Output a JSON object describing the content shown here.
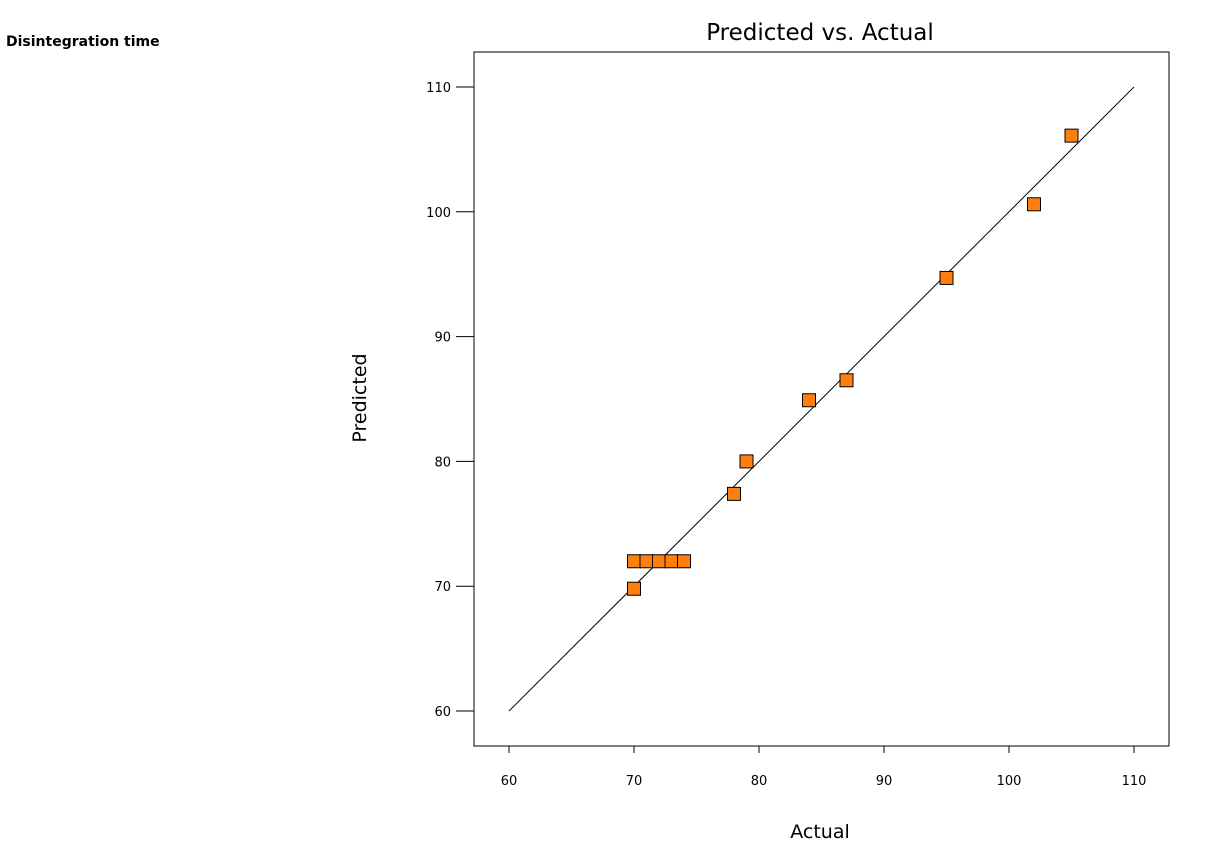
{
  "response_label": "Disintegration time",
  "chart_data": {
    "type": "scatter",
    "title": "Predicted vs. Actual",
    "xlabel": "Actual",
    "ylabel": "Predicted",
    "xlim": [
      57.2,
      112.8
    ],
    "ylim": [
      57.2,
      112.8
    ],
    "xticks": [
      60,
      70,
      80,
      90,
      100,
      110
    ],
    "yticks": [
      60,
      70,
      80,
      90,
      100,
      110
    ],
    "grid": false,
    "reference_line": {
      "from": [
        60,
        60
      ],
      "to": [
        110,
        110
      ]
    },
    "marker": {
      "shape": "square",
      "fill": "#ff7f0e",
      "stroke": "#000000"
    },
    "points": [
      {
        "x": 70,
        "y": 72
      },
      {
        "x": 71,
        "y": 72
      },
      {
        "x": 72,
        "y": 72
      },
      {
        "x": 73,
        "y": 72
      },
      {
        "x": 74,
        "y": 72
      },
      {
        "x": 70,
        "y": 69.8
      },
      {
        "x": 78,
        "y": 77.4
      },
      {
        "x": 79,
        "y": 80
      },
      {
        "x": 84,
        "y": 84.9
      },
      {
        "x": 87,
        "y": 86.5
      },
      {
        "x": 95,
        "y": 94.7
      },
      {
        "x": 102,
        "y": 100.6
      },
      {
        "x": 105,
        "y": 106.1
      }
    ]
  }
}
